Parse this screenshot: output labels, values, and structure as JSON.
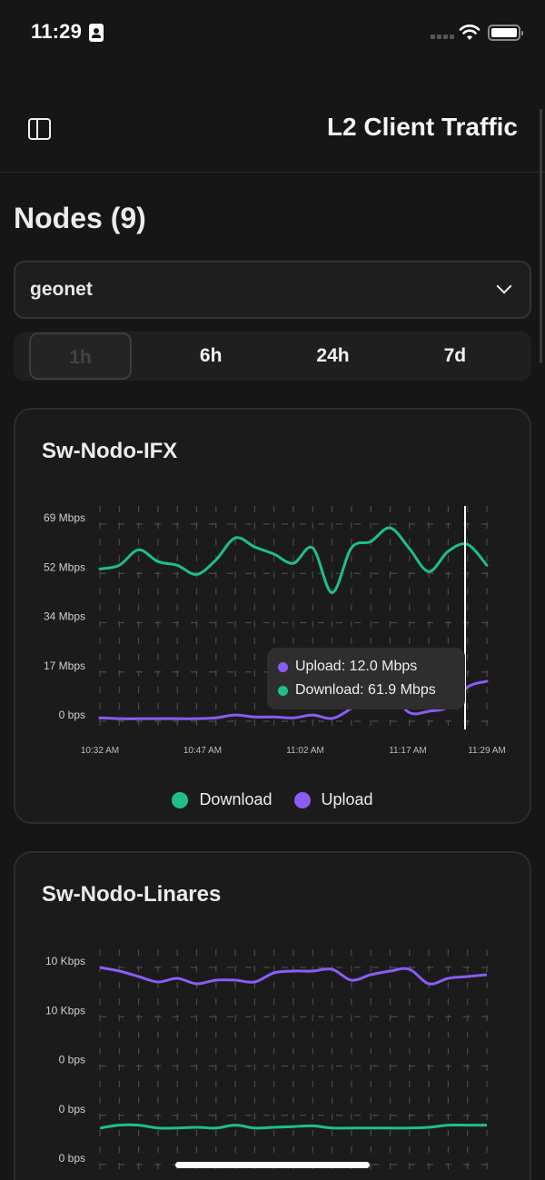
{
  "status_bar": {
    "time": "11:29",
    "icons": [
      "id-card-icon",
      "signal-icon",
      "wifi-icon",
      "battery-icon"
    ]
  },
  "nav": {
    "title": "L2 Client Traffic",
    "left_icon": "sidebar-toggle-icon"
  },
  "page": {
    "title": "Nodes (9)"
  },
  "network_select": {
    "value": "geonet"
  },
  "time_ranges": {
    "items": [
      "1h",
      "6h",
      "24h",
      "7d"
    ],
    "active": "1h"
  },
  "colors": {
    "download": "#1fbf86",
    "upload": "#8b5cf6",
    "background": "#161616",
    "card": "#1b1b1b"
  },
  "cards": [
    {
      "title": "Sw-Nodo-IFX",
      "legend": {
        "download": "Download",
        "upload": "Upload"
      },
      "tooltip": {
        "upload": "Upload: 12.0 Mbps",
        "download": "Download: 61.9 Mbps"
      },
      "y_labels": [
        "69 Mbps",
        "52 Mbps",
        "34 Mbps",
        "17 Mbps",
        "0 bps"
      ],
      "x_labels": [
        "10:32 AM",
        "10:47 AM",
        "11:02 AM",
        "11:17 AM",
        "11:29 AM"
      ]
    },
    {
      "title": "Sw-Nodo-Linares",
      "y_labels": [
        "10 Kbps",
        "10 Kbps",
        "0 bps",
        "0 bps",
        "0 bps"
      ]
    }
  ],
  "chart_data": [
    {
      "type": "line",
      "title": "Sw-Nodo-IFX",
      "xlabel": "",
      "ylabel": "",
      "ylim": [
        0,
        69
      ],
      "y_ticks": [
        "0 bps",
        "17 Mbps",
        "34 Mbps",
        "52 Mbps",
        "69 Mbps"
      ],
      "x_ticks": [
        "10:32 AM",
        "10:47 AM",
        "11:02 AM",
        "11:17 AM",
        "11:29 AM"
      ],
      "grid": true,
      "legend_position": "bottom",
      "x": [
        "10:32",
        "10:35",
        "10:38",
        "10:41",
        "10:45",
        "10:47",
        "10:50",
        "10:53",
        "10:56",
        "10:59",
        "11:02",
        "11:05",
        "11:09",
        "11:11",
        "11:13",
        "11:16",
        "11:19",
        "11:22",
        "11:25",
        "11:28",
        "11:29"
      ],
      "series": [
        {
          "name": "Download",
          "color": "#1fbf86",
          "values": [
            53.3,
            54.6,
            60.0,
            55.9,
            54.6,
            51.4,
            56.5,
            64.2,
            61.0,
            58.5,
            55.3,
            60.7,
            45.0,
            60.7,
            62.9,
            67.7,
            60.4,
            52.4,
            59.5,
            61.9,
            54.6
          ]
        },
        {
          "name": "Upload",
          "color": "#8b5cf6",
          "values": [
            1.2,
            0.9,
            0.9,
            0.9,
            0.9,
            0.9,
            1.2,
            2.2,
            1.5,
            1.5,
            1.2,
            2.2,
            1.0,
            4.5,
            9.0,
            10.0,
            3.0,
            3.5,
            5.0,
            12.0,
            14.0
          ]
        }
      ],
      "tooltip": {
        "time": "11:28",
        "upload": 12.0,
        "download": 61.9,
        "unit": "Mbps"
      }
    },
    {
      "type": "line",
      "title": "Sw-Nodo-Linares",
      "y_ticks": [
        "0 bps",
        "0 bps",
        "0 bps",
        "10 Kbps",
        "10 Kbps"
      ],
      "grid": true,
      "x": [
        "10:32",
        "10:35",
        "10:38",
        "10:41",
        "10:45",
        "10:47",
        "10:50",
        "10:53",
        "10:56",
        "10:59",
        "11:02",
        "11:05",
        "11:09",
        "11:11",
        "11:13",
        "11:16",
        "11:19",
        "11:22",
        "11:25",
        "11:28",
        "11:29"
      ],
      "series": [
        {
          "name": "Upload",
          "color": "#8b5cf6",
          "values": [
            10.0,
            9.8,
            9.5,
            9.2,
            9.4,
            9.1,
            9.3,
            9.3,
            9.2,
            9.7,
            9.8,
            9.8,
            9.9,
            9.3,
            9.6,
            9.8,
            9.9,
            9.1,
            9.4,
            9.5,
            9.6
          ],
          "unit": "Kbps"
        },
        {
          "name": "Download",
          "color": "#1fbf86",
          "values": [
            0.2,
            0.4,
            0.4,
            0.2,
            0.2,
            0.25,
            0.2,
            0.4,
            0.2,
            0.25,
            0.3,
            0.35,
            0.2,
            0.2,
            0.2,
            0.2,
            0.2,
            0.25,
            0.4,
            0.4,
            0.4
          ],
          "unit": "bps (scaled)"
        }
      ]
    }
  ]
}
